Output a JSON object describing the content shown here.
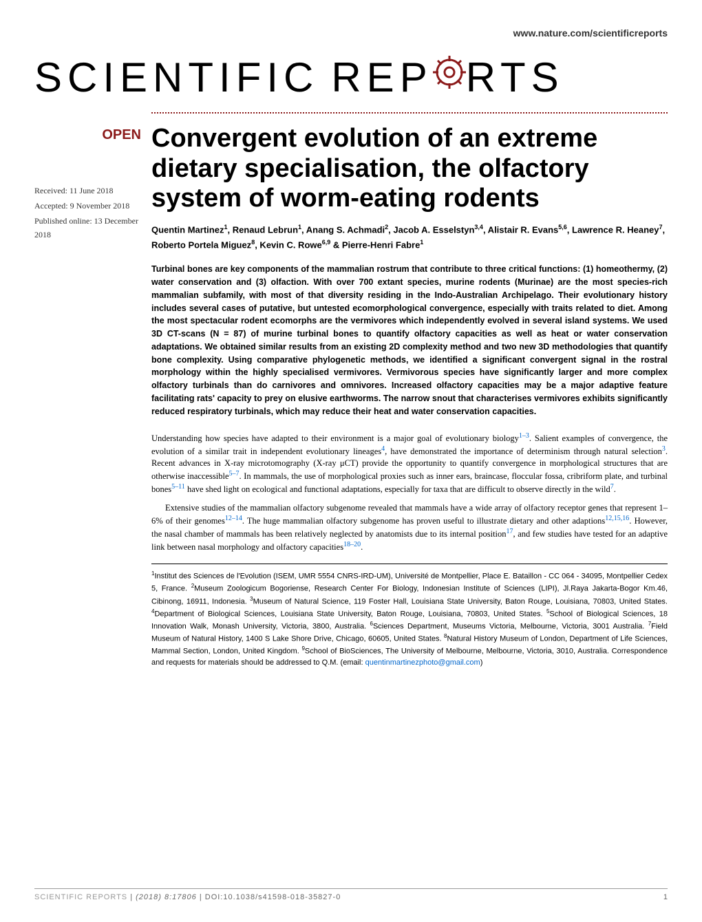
{
  "header": {
    "url": "www.nature.com/scientificreports"
  },
  "journal": {
    "name_part1": "SCIENTIFIC",
    "name_part2": "REP",
    "name_part3": "RTS"
  },
  "badge": {
    "open": "OPEN"
  },
  "dates": {
    "received": "Received: 11 June 2018",
    "accepted": "Accepted: 9 November 2018",
    "published": "Published online: 13 December 2018"
  },
  "title": "Convergent evolution of an extreme dietary specialisation, the olfactory system of worm-eating rodents",
  "authors_html": "Quentin Martinez<sup>1</sup>, Renaud Lebrun<sup>1</sup>, Anang S. Achmadi<sup>2</sup>, Jacob A. Esselstyn<sup>3,4</sup>, Alistair R. Evans<sup>5,6</sup>, Lawrence R. Heaney<sup>7</sup>, Roberto Portela Miguez<sup>8</sup>, Kevin C. Rowe<sup>6,9</sup> & Pierre-Henri Fabre<sup>1</sup>",
  "abstract": "Turbinal bones are key components of the mammalian rostrum that contribute to three critical functions: (1) homeothermy, (2) water conservation and (3) olfaction. With over 700 extant species, murine rodents (Murinae) are the most species-rich mammalian subfamily, with most of that diversity residing in the Indo-Australian Archipelago. Their evolutionary history includes several cases of putative, but untested ecomorphological convergence, especially with traits related to diet. Among the most spectacular rodent ecomorphs are the vermivores which independently evolved in several island systems. We used 3D CT-scans (N = 87) of murine turbinal bones to quantify olfactory capacities as well as heat or water conservation adaptations. We obtained similar results from an existing 2D complexity method and two new 3D methodologies that quantify bone complexity. Using comparative phylogenetic methods, we identified a significant convergent signal in the rostral morphology within the highly specialised vermivores. Vermivorous species have significantly larger and more complex olfactory turbinals than do carnivores and omnivores. Increased olfactory capacities may be a major adaptive feature facilitating rats' capacity to prey on elusive earthworms. The narrow snout that characterises vermivores exhibits significantly reduced respiratory turbinals, which may reduce their heat and water conservation capacities.",
  "body": {
    "para1_html": "Understanding how species have adapted to their environment is a major goal of evolutionary biology<span class=\"cite-link\">1–3</span>. Salient examples of convergence, the evolution of a similar trait in independent evolutionary lineages<span class=\"cite-link\">4</span>, have demonstrated the importance of determinism through natural selection<span class=\"cite-link\">3</span>. Recent advances in X-ray microtomography (X-ray μCT) provide the opportunity to quantify convergence in morphological structures that are otherwise inaccessible<span class=\"cite-link\">5–7</span>. In mammals, the use of morphological proxies such as inner ears, braincase, floccular fossa, cribriform plate, and turbinal bones<span class=\"cite-link\">5–11</span> have shed light on ecological and functional adaptations, especially for taxa that are difficult to observe directly in the wild<span class=\"cite-link\">7</span>.",
    "para2_html": "Extensive studies of the mammalian olfactory subgenome revealed that mammals have a wide array of olfactory receptor genes that represent 1–6% of their genomes<span class=\"cite-link\">12–14</span>. The huge mammalian olfactory subgenome has proven useful to illustrate dietary and other adaptions<span class=\"cite-link\">12,15,16</span>. However, the nasal chamber of mammals has been relatively neglected by anatomists due to its internal position<span class=\"cite-link\">17</span>, and few studies have tested for an adaptive link between nasal morphology and olfactory capacities<span class=\"cite-link\">18–20</span>."
  },
  "affiliations_html": "<sup>1</sup>Institut des Sciences de l'Evolution (ISEM, UMR 5554 CNRS-IRD-UM), Université de Montpellier, Place E. Bataillon - CC 064 - 34095, Montpellier Cedex 5, France. <sup>2</sup>Museum Zoologicum Bogoriense, Research Center For Biology, Indonesian Institute of Sciences (LIPI), Jl.Raya Jakarta-Bogor Km.46, Cibinong, 16911, Indonesia. <sup>3</sup>Museum of Natural Science, 119 Foster Hall, Louisiana State University, Baton Rouge, Louisiana, 70803, United States. <sup>4</sup>Department of Biological Sciences, Louisiana State University, Baton Rouge, Louisiana, 70803, United States. <sup>5</sup>School of Biological Sciences, 18 Innovation Walk, Monash University, Victoria, 3800, Australia. <sup>6</sup>Sciences Department, Museums Victoria, Melbourne, Victoria, 3001 Australia. <sup>7</sup>Field Museum of Natural History, 1400 S Lake Shore Drive, Chicago, 60605, United States. <sup>8</sup>Natural History Museum of London, Department of Life Sciences, Mammal Section, London, United Kingdom. <sup>9</sup>School of BioSciences, The University of Melbourne, Melbourne, Victoria, 3010, Australia. Correspondence and requests for materials should be addressed to Q.M. (email: <span class=\"email-link\">quentinmartinezphoto@gmail.com</span>)",
  "footer": {
    "journal": "SCIENTIFIC REPORTS",
    "citation": "(2018) 8:17806",
    "doi": "DOI:10.1038/s41598-018-35827-0",
    "page": "1"
  },
  "colors": {
    "accent": "#8b1a1a",
    "link": "#0066cc",
    "text": "#000000",
    "footer_text": "#666666",
    "background": "#ffffff"
  }
}
